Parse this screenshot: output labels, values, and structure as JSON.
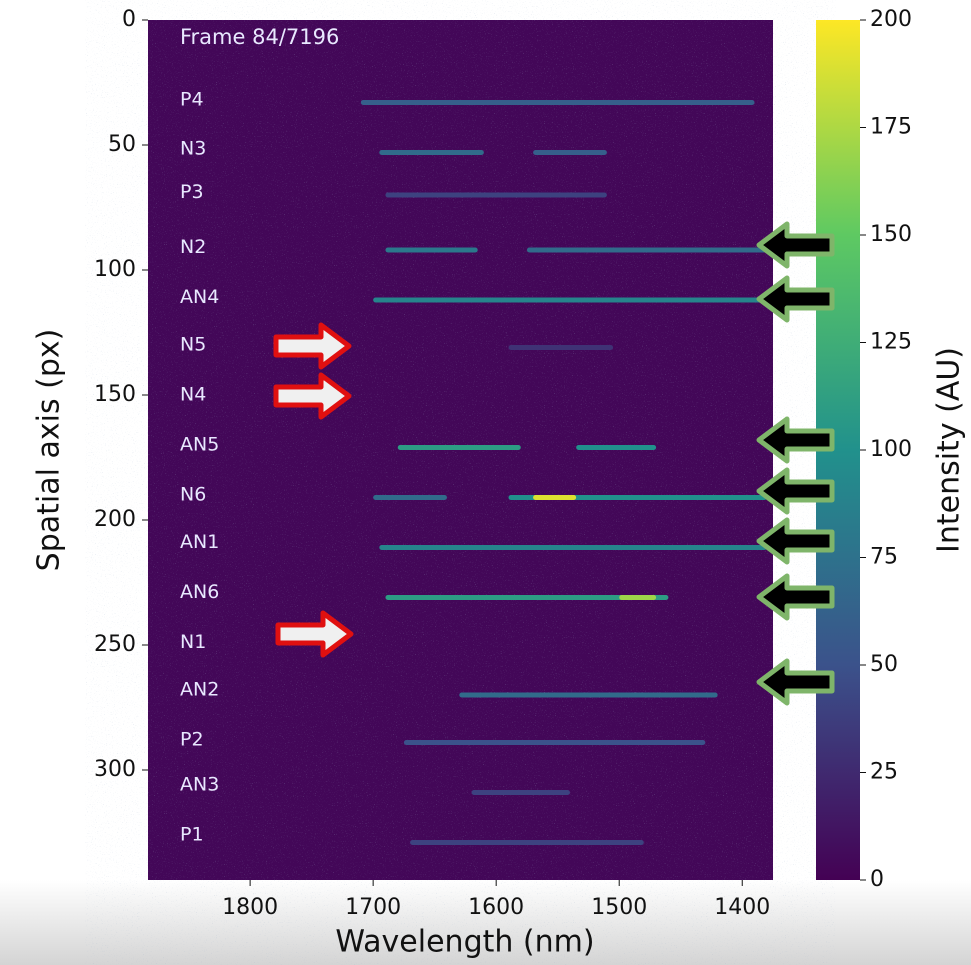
{
  "chart_data": {
    "type": "spectrogram",
    "annotation": "Frame 84/7196",
    "x_label": "Wavelength (nm)",
    "y_label": "Spatial axis (px)",
    "xlim": [
      1883,
      1375
    ],
    "ylim": [
      344,
      0
    ],
    "xticks": [
      1800,
      1700,
      1600,
      1500,
      1400
    ],
    "yticks": [
      0,
      50,
      100,
      150,
      200,
      250,
      300
    ],
    "background_intensity": 4,
    "colorbar": {
      "label": "Intensity (AU)",
      "lim": [
        0,
        200
      ],
      "ticks": [
        0,
        25,
        50,
        75,
        100,
        125,
        150,
        175,
        200
      ]
    },
    "colormap": [
      "#440154",
      "#3b528b",
      "#21918c",
      "#5ec962",
      "#fde725"
    ],
    "row_labels": [
      {
        "text": "P4",
        "y": 32
      },
      {
        "text": "N3",
        "y": 51.5
      },
      {
        "text": "P3",
        "y": 69
      },
      {
        "text": "N2",
        "y": 91
      },
      {
        "text": "AN4",
        "y": 111
      },
      {
        "text": "N5",
        "y": 130
      },
      {
        "text": "N4",
        "y": 150
      },
      {
        "text": "AN5",
        "y": 170
      },
      {
        "text": "N6",
        "y": 190
      },
      {
        "text": "AN1",
        "y": 209
      },
      {
        "text": "AN6",
        "y": 229
      },
      {
        "text": "N1",
        "y": 249
      },
      {
        "text": "AN2",
        "y": 268
      },
      {
        "text": "P2",
        "y": 288
      },
      {
        "text": "AN3",
        "y": 306
      },
      {
        "text": "P1",
        "y": 326
      }
    ],
    "streaks": [
      {
        "y": 33,
        "x": [
          1710,
          1390
        ],
        "intensity": 60
      },
      {
        "y": 53,
        "x": [
          1695,
          1610
        ],
        "intensity": 70
      },
      {
        "y": 53,
        "x": [
          1570,
          1510
        ],
        "intensity": 60
      },
      {
        "y": 70,
        "x": [
          1690,
          1510
        ],
        "intensity": 40
      },
      {
        "y": 92,
        "x": [
          1690,
          1615
        ],
        "intensity": 80
      },
      {
        "y": 92,
        "x": [
          1575,
          1380
        ],
        "intensity": 70
      },
      {
        "y": 112,
        "x": [
          1700,
          1380
        ],
        "intensity": 90
      },
      {
        "y": 131,
        "x": [
          1590,
          1505
        ],
        "intensity": 30
      },
      {
        "y": 171,
        "x": [
          1680,
          1580
        ],
        "intensity": 110
      },
      {
        "y": 171,
        "x": [
          1535,
          1470
        ],
        "intensity": 100
      },
      {
        "y": 191,
        "x": [
          1700,
          1640
        ],
        "intensity": 70
      },
      {
        "y": 191,
        "x": [
          1590,
          1380
        ],
        "intensity": 100
      },
      {
        "y": 191,
        "x": [
          1570,
          1535
        ],
        "intensity": 190
      },
      {
        "y": 211,
        "x": [
          1695,
          1380
        ],
        "intensity": 90
      },
      {
        "y": 231,
        "x": [
          1690,
          1460
        ],
        "intensity": 110
      },
      {
        "y": 231,
        "x": [
          1500,
          1470
        ],
        "intensity": 170
      },
      {
        "y": 270,
        "x": [
          1630,
          1420
        ],
        "intensity": 70
      },
      {
        "y": 289,
        "x": [
          1675,
          1430
        ],
        "intensity": 50
      },
      {
        "y": 309,
        "x": [
          1620,
          1540
        ],
        "intensity": 40
      },
      {
        "y": 329,
        "x": [
          1670,
          1480
        ],
        "intensity": 40
      }
    ]
  }
}
